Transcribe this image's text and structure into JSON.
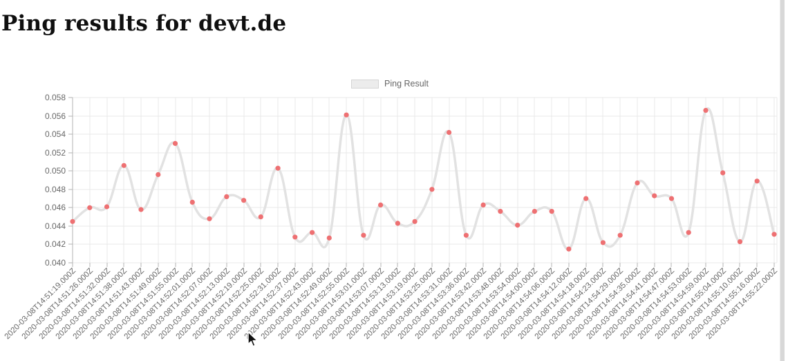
{
  "page": {
    "title": "Ping results for devt.de"
  },
  "legend": {
    "label": "Ping Result"
  },
  "colors": {
    "title": "#0f0f0f",
    "axis_label": "#686868",
    "grid": "#e9e9e9",
    "axis_line": "#b3b3b3",
    "line": "#e2e2e2",
    "point": "#ee7072",
    "legend_swatch_fill": "#ececec",
    "legend_swatch_border": "#d4d4d4",
    "legend_text": "#666666",
    "scrollbar": "#d8d8d8"
  },
  "chart_data": {
    "type": "line",
    "title": "",
    "series": [
      {
        "name": "Ping Result"
      }
    ],
    "x": [
      "2020-03-08T14:51:19.000Z",
      "2020-03-08T14:51:26.000Z",
      "2020-03-08T14:51:32.000Z",
      "2020-03-08T14:51:38.000Z",
      "2020-03-08T14:51:43.000Z",
      "2020-03-08T14:51:49.000Z",
      "2020-03-08T14:51:55.000Z",
      "2020-03-08T14:52:01.000Z",
      "2020-03-08T14:52:07.000Z",
      "2020-03-08T14:52:13.000Z",
      "2020-03-08T14:52:19.000Z",
      "2020-03-08T14:52:25.000Z",
      "2020-03-08T14:52:31.000Z",
      "2020-03-08T14:52:37.000Z",
      "2020-03-08T14:52:43.000Z",
      "2020-03-08T14:52:49.000Z",
      "2020-03-08T14:52:55.000Z",
      "2020-03-08T14:53:01.000Z",
      "2020-03-08T14:53:07.000Z",
      "2020-03-08T14:53:13.000Z",
      "2020-03-08T14:53:19.000Z",
      "2020-03-08T14:53:25.000Z",
      "2020-03-08T14:53:31.000Z",
      "2020-03-08T14:53:36.000Z",
      "2020-03-08T14:53:42.000Z",
      "2020-03-08T14:53:48.000Z",
      "2020-03-08T14:53:54.000Z",
      "2020-03-08T14:54:00.000Z",
      "2020-03-08T14:54:06.000Z",
      "2020-03-08T14:54:12.000Z",
      "2020-03-08T14:54:18.000Z",
      "2020-03-08T14:54:23.000Z",
      "2020-03-08T14:54:29.000Z",
      "2020-03-08T14:54:35.000Z",
      "2020-03-08T14:54:41.000Z",
      "2020-03-08T14:54:47.000Z",
      "2020-03-08T14:54:53.000Z",
      "2020-03-08T14:54:59.000Z",
      "2020-03-08T14:55:04.000Z",
      "2020-03-08T14:55:10.000Z",
      "2020-03-08T14:55:16.000Z",
      "2020-03-08T14:55:22.000Z"
    ],
    "values": [
      0.0445,
      0.046,
      0.0461,
      0.0506,
      0.0458,
      0.0496,
      0.053,
      0.0466,
      0.0448,
      0.0472,
      0.0468,
      0.045,
      0.0503,
      0.0428,
      0.0433,
      0.0427,
      0.0561,
      0.043,
      0.0463,
      0.0443,
      0.0445,
      0.048,
      0.0542,
      0.043,
      0.0463,
      0.0456,
      0.0441,
      0.0456,
      0.0456,
      0.0415,
      0.047,
      0.0422,
      0.043,
      0.0487,
      0.0473,
      0.047,
      0.0433,
      0.0566,
      0.0498,
      0.0423,
      0.0489,
      0.0431
    ],
    "xlabel": "",
    "ylabel": "",
    "ylim": [
      0.04,
      0.058
    ],
    "ytick_step": 0.002,
    "yticks": [
      "0.058",
      "0.056",
      "0.054",
      "0.052",
      "0.050",
      "0.048",
      "0.046",
      "0.044",
      "0.042",
      "0.040"
    ],
    "grid": true,
    "legend_position": "top",
    "x_label_rotation_deg": -45
  }
}
